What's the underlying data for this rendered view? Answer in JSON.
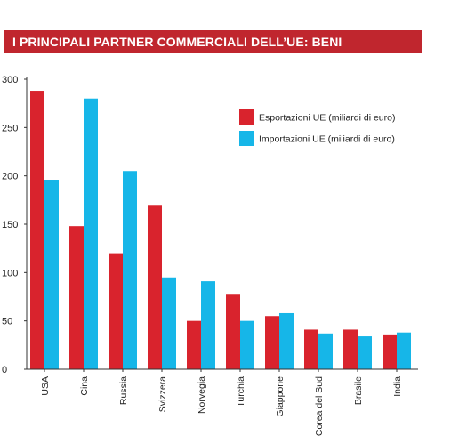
{
  "header": {
    "title": "I PRINCIPALI PARTNER COMMERCIALI DELL’UE: BENI"
  },
  "colors": {
    "title_bar": "#c0262e",
    "exports": "#d9232d",
    "imports": "#16b6e8",
    "axis": "#333333",
    "grid": "#e0e0e0"
  },
  "chart_data": {
    "type": "bar",
    "title": "I PRINCIPALI PARTNER COMMERCIALI DELL’UE: BENI",
    "xlabel": "",
    "ylabel": "",
    "ylim": [
      0,
      300
    ],
    "yticks": [
      0,
      50,
      100,
      150,
      200,
      250,
      300
    ],
    "grid": false,
    "legend_position": "top-right",
    "categories": [
      "USA",
      "Cina",
      "Russia",
      "Svizzera",
      "Norvegia",
      "Turchia",
      "Giappone",
      "Corea del Sud",
      "Brasile",
      "India"
    ],
    "series": [
      {
        "name": "Esportazioni UE (miliardi di euro)",
        "color": "#d9232d",
        "values": [
          288,
          148,
          120,
          170,
          50,
          78,
          55,
          41,
          41,
          36
        ]
      },
      {
        "name": "Importazioni UE (miliardi di euro)",
        "color": "#16b6e8",
        "values": [
          196,
          280,
          205,
          95,
          91,
          50,
          58,
          37,
          34,
          38
        ]
      }
    ]
  }
}
